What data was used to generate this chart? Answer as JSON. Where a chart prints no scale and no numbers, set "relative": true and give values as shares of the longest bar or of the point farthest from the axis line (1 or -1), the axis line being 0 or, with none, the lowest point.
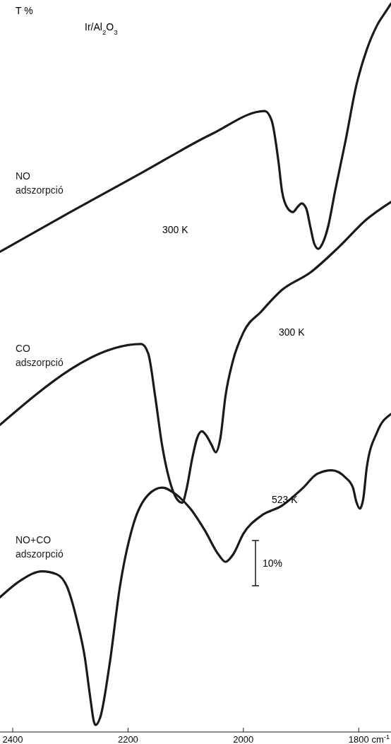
{
  "chart_data": {
    "type": "line",
    "title": "Ir/Al$_{2}$O$_{3}$",
    "ylabel": "T %",
    "xlabel": "cm$^{-1}$",
    "relative": true,
    "tick_labels": "x",
    "xlim": [
      2422,
      1744
    ],
    "xticks": [
      2400,
      2200,
      2000,
      1800
    ],
    "series": [
      {
        "name": "NO adszorpció",
        "color": "#1a1a1a",
        "x": [
          2422,
          2300,
          2177,
          2055,
          1963,
          1951,
          1939,
          1933,
          1923,
          1914,
          1906,
          1899,
          1891,
          1884,
          1877,
          1870,
          1863,
          1853,
          1841,
          1823,
          1804,
          1786,
          1768,
          1752,
          1744
        ],
        "values": [
          0.656,
          0.711,
          0.765,
          0.819,
          0.851,
          0.838,
          0.78,
          0.74,
          0.716,
          0.711,
          0.718,
          0.723,
          0.716,
          0.691,
          0.667,
          0.66,
          0.667,
          0.691,
          0.74,
          0.809,
          0.887,
          0.936,
          0.97,
          0.99,
          1.0
        ]
      },
      {
        "name": "CO adszorpció",
        "color": "#1a1a1a",
        "x": [
          2422,
          2177,
          2165,
          2153,
          2141,
          2128,
          2116,
          2106,
          2098,
          2089,
          2080,
          2072,
          2065,
          2055,
          2048,
          2040,
          2031,
          2018,
          2000,
          1969,
          1933,
          1884,
          1835,
          1786,
          1744
        ],
        "values": [
          0.416,
          0.528,
          0.515,
          0.456,
          0.388,
          0.339,
          0.314,
          0.308,
          0.329,
          0.368,
          0.398,
          0.407,
          0.402,
          0.388,
          0.378,
          0.397,
          0.456,
          0.505,
          0.544,
          0.573,
          0.603,
          0.627,
          0.662,
          0.701,
          0.725
        ]
      },
      {
        "name": "NO+CO adszorpció",
        "color": "#1a1a1a",
        "x": [
          2422,
          2385,
          2349,
          2324,
          2306,
          2288,
          2275,
          2265,
          2259,
          2256,
          2248,
          2232,
          2214,
          2190,
          2165,
          2141,
          2116,
          2092,
          2067,
          2043,
          2031,
          2018,
          2000,
          1969,
          1933,
          1896,
          1872,
          1847,
          1823,
          1810,
          1804,
          1798,
          1792,
          1786,
          1768,
          1744
        ],
        "values": [
          0.177,
          0.201,
          0.213,
          0.209,
          0.192,
          0.143,
          0.094,
          0.035,
          0.004,
          0,
          0.011,
          0.084,
          0.192,
          0.28,
          0.319,
          0.329,
          0.319,
          0.3,
          0.27,
          0.236,
          0.226,
          0.236,
          0.265,
          0.29,
          0.304,
          0.329,
          0.348,
          0.353,
          0.343,
          0.329,
          0.309,
          0.3,
          0.314,
          0.357,
          0.406,
          0.431
        ]
      }
    ],
    "annotations": [
      "300 K",
      "300 K",
      "523 K",
      "10%"
    ]
  }
}
